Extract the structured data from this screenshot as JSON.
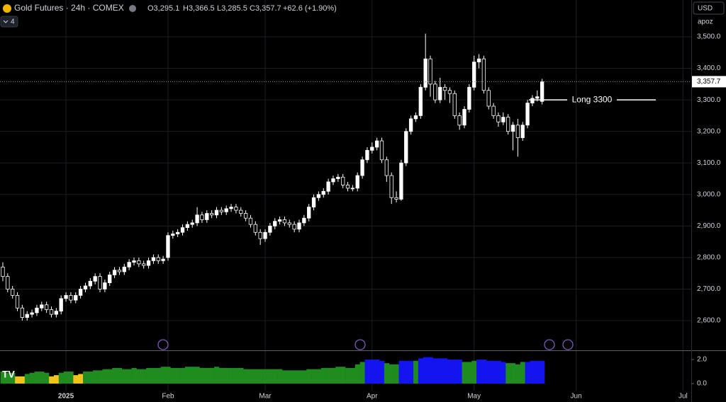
{
  "toolbar": {
    "symbol": "Gold Futures · 24h · COMEX",
    "ohlc": [
      "O3,295.1",
      "H3,366.5",
      "L3,285.5",
      "C3,357.7"
    ],
    "change": "+62.6 (+1.90%)",
    "indicator_count": "4",
    "currency": "USD",
    "scale_mode": "apoz"
  },
  "chart_data": {
    "type": "candlestick",
    "xlim": [
      -0.58,
      141.7
    ],
    "xticks": [
      {
        "value": 13,
        "label": "2025"
      },
      {
        "value": 34,
        "label": "Feb"
      },
      {
        "value": 54,
        "label": "Mar"
      },
      {
        "value": 76,
        "label": "Apr"
      },
      {
        "value": 97,
        "label": "May"
      },
      {
        "value": 118,
        "label": "Jun"
      },
      {
        "value": 140,
        "label": "Jul"
      }
    ],
    "ylim": [
      2505.8,
      3616.7
    ],
    "yticks": [
      {
        "value": 2600,
        "label": "2,600.0"
      },
      {
        "value": 2700,
        "label": "2,700.0"
      },
      {
        "value": 2800,
        "label": "2,800.0"
      },
      {
        "value": 2900,
        "label": "2,900.0"
      },
      {
        "value": 3000,
        "label": "3,000.0"
      },
      {
        "value": 3100,
        "label": "3,100.0"
      },
      {
        "value": 3200,
        "label": "3,200.0"
      },
      {
        "value": 3300,
        "label": "3,300.0"
      },
      {
        "value": 3400,
        "label": "3,400.0"
      },
      {
        "value": 3500,
        "label": "3,500.0"
      }
    ],
    "grid": true,
    "color": "#ffffff",
    "open": [
      2770,
      2740,
      2700,
      2680,
      2640,
      2610,
      2620,
      2625,
      2640,
      2650,
      2635,
      2620,
      2630,
      2670,
      2680,
      2665,
      2680,
      2700,
      2710,
      2725,
      2740,
      2700,
      2720,
      2745,
      2760,
      2755,
      2770,
      2785,
      2790,
      2780,
      2775,
      2790,
      2800,
      2790,
      2800,
      2870,
      2875,
      2880,
      2895,
      2905,
      2910,
      2935,
      2920,
      2940,
      2935,
      2950,
      2945,
      2955,
      2960,
      2950,
      2940,
      2925,
      2905,
      2880,
      2860,
      2880,
      2900,
      2915,
      2920,
      2910,
      2905,
      2890,
      2910,
      2925,
      2960,
      2990,
      3000,
      3010,
      3040,
      3050,
      3055,
      3030,
      3020,
      3020,
      3060,
      3110,
      3140,
      3150,
      3170,
      3110,
      3060,
      2990,
      2985,
      3100,
      3200,
      3240,
      3250,
      3340,
      3430,
      3350,
      3300,
      3340,
      3330,
      3320,
      3250,
      3220,
      3270,
      3340,
      3420,
      3430,
      3330,
      3280,
      3250,
      3230,
      3245,
      3200,
      3220,
      3180,
      3220,
      3290,
      3305,
      3295.1
    ],
    "high": [
      2785,
      2750,
      2710,
      2690,
      2650,
      2630,
      2635,
      2650,
      2660,
      2660,
      2645,
      2640,
      2680,
      2690,
      2690,
      2690,
      2710,
      2720,
      2735,
      2750,
      2750,
      2730,
      2755,
      2770,
      2770,
      2780,
      2795,
      2800,
      2800,
      2790,
      2800,
      2810,
      2810,
      2805,
      2880,
      2885,
      2890,
      2905,
      2915,
      2920,
      2960,
      2945,
      2950,
      2950,
      2960,
      2960,
      2965,
      2970,
      2970,
      2960,
      2950,
      2935,
      2915,
      2890,
      2890,
      2910,
      2925,
      2930,
      2930,
      2920,
      2915,
      2920,
      2935,
      2970,
      3000,
      3010,
      3020,
      3050,
      3060,
      3065,
      3065,
      3040,
      3030,
      3070,
      3120,
      3150,
      3165,
      3180,
      3180,
      3120,
      3070,
      3010,
      3110,
      3210,
      3250,
      3260,
      3350,
      3510,
      3440,
      3360,
      3370,
      3350,
      3340,
      3330,
      3260,
      3280,
      3350,
      3440,
      3445,
      3440,
      3340,
      3290,
      3260,
      3260,
      3255,
      3230,
      3240,
      3230,
      3300,
      3315,
      3330,
      3366.5
    ],
    "low": [
      2725,
      2690,
      2670,
      2630,
      2600,
      2600,
      2610,
      2615,
      2630,
      2625,
      2610,
      2610,
      2620,
      2660,
      2655,
      2655,
      2670,
      2690,
      2700,
      2715,
      2690,
      2690,
      2710,
      2735,
      2745,
      2745,
      2760,
      2775,
      2770,
      2765,
      2765,
      2780,
      2780,
      2780,
      2790,
      2860,
      2865,
      2870,
      2885,
      2895,
      2900,
      2910,
      2910,
      2925,
      2925,
      2935,
      2935,
      2945,
      2940,
      2930,
      2915,
      2895,
      2870,
      2840,
      2850,
      2870,
      2890,
      2905,
      2900,
      2895,
      2880,
      2880,
      2900,
      2915,
      2950,
      2980,
      2990,
      3000,
      3030,
      3040,
      3020,
      3010,
      3010,
      3010,
      3050,
      3100,
      3130,
      3140,
      3100,
      3040,
      2970,
      2975,
      2980,
      3090,
      3190,
      3230,
      3240,
      3330,
      3310,
      3290,
      3290,
      3300,
      3290,
      3240,
      3205,
      3210,
      3260,
      3330,
      3400,
      3320,
      3270,
      3240,
      3215,
      3220,
      3190,
      3140,
      3120,
      3170,
      3210,
      3280,
      3295,
      3285.5
    ],
    "close": [
      2740,
      2700,
      2680,
      2640,
      2610,
      2620,
      2625,
      2640,
      2650,
      2635,
      2620,
      2630,
      2670,
      2680,
      2665,
      2680,
      2700,
      2710,
      2725,
      2740,
      2700,
      2720,
      2745,
      2760,
      2755,
      2770,
      2785,
      2790,
      2780,
      2775,
      2790,
      2800,
      2790,
      2795,
      2870,
      2875,
      2880,
      2895,
      2905,
      2910,
      2935,
      2920,
      2940,
      2935,
      2950,
      2945,
      2955,
      2960,
      2950,
      2940,
      2925,
      2905,
      2880,
      2860,
      2880,
      2900,
      2915,
      2920,
      2910,
      2905,
      2890,
      2910,
      2925,
      2960,
      2990,
      3000,
      3010,
      3040,
      3050,
      3055,
      3030,
      3020,
      3020,
      3060,
      3110,
      3140,
      3150,
      3170,
      3110,
      3060,
      2990,
      2985,
      3100,
      3200,
      3240,
      3250,
      3340,
      3430,
      3350,
      3300,
      3340,
      3330,
      3320,
      3250,
      3220,
      3270,
      3340,
      3420,
      3430,
      3330,
      3280,
      3250,
      3230,
      3245,
      3200,
      3220,
      3180,
      3220,
      3290,
      3305,
      3310,
      3357.7
    ],
    "last_price": {
      "value": 3357.7,
      "label": "3,357.7"
    },
    "annotations": [
      {
        "text": "Long 3300",
        "value": 3300
      }
    ],
    "indicator": {
      "type": "bar",
      "ylim": [
        -0.59,
        2.65
      ],
      "yticks": [
        {
          "value": 0,
          "label": "0.0"
        },
        {
          "value": 2,
          "label": "2.0"
        }
      ],
      "values": [
        1.0,
        0.9,
        0.9,
        0.6,
        0.6,
        0.8,
        0.9,
        1.0,
        1.0,
        0.9,
        0.6,
        0.7,
        0.9,
        1.0,
        1.0,
        0.7,
        0.8,
        1.0,
        1.0,
        1.1,
        1.1,
        1.2,
        1.2,
        1.3,
        1.3,
        1.2,
        1.2,
        1.3,
        1.2,
        1.2,
        1.3,
        1.3,
        1.3,
        1.4,
        1.4,
        1.3,
        1.3,
        1.3,
        1.4,
        1.4,
        1.4,
        1.3,
        1.3,
        1.3,
        1.4,
        1.3,
        1.3,
        1.3,
        1.3,
        1.3,
        1.2,
        1.2,
        1.2,
        1.2,
        1.2,
        1.2,
        1.2,
        1.2,
        1.1,
        1.1,
        1.1,
        1.1,
        1.1,
        1.2,
        1.2,
        1.2,
        1.3,
        1.3,
        1.3,
        1.4,
        1.4,
        1.3,
        1.3,
        1.6,
        1.8,
        2.0,
        2.0,
        2.0,
        1.9,
        1.7,
        1.6,
        1.6,
        1.9,
        1.9,
        1.9,
        1.9,
        2.1,
        2.2,
        2.2,
        2.1,
        2.1,
        2.1,
        2.0,
        2.0,
        2.0,
        1.8,
        1.8,
        1.9,
        2.0,
        2.0,
        1.9,
        1.9,
        1.9,
        1.8,
        1.7,
        1.7,
        1.6,
        1.8,
        1.8,
        1.9,
        1.9,
        1.9
      ],
      "colors": [
        "#1e8c1e",
        "#1e8c1e",
        "#1e8c1e",
        "#f2c31c",
        "#f2c31c",
        "#1e8c1e",
        "#1e8c1e",
        "#1e8c1e",
        "#1e8c1e",
        "#1e8c1e",
        "#f2c31c",
        "#f2c31c",
        "#1e8c1e",
        "#1e8c1e",
        "#1e8c1e",
        "#f2c31c",
        "#f2c31c",
        "#1e8c1e",
        "#1e8c1e",
        "#1e8c1e",
        "#1e8c1e",
        "#1e8c1e",
        "#1e8c1e",
        "#1e8c1e",
        "#1e8c1e",
        "#1e8c1e",
        "#1e8c1e",
        "#1e8c1e",
        "#1e8c1e",
        "#1e8c1e",
        "#1e8c1e",
        "#1e8c1e",
        "#1e8c1e",
        "#1e8c1e",
        "#1e8c1e",
        "#1e8c1e",
        "#1e8c1e",
        "#1e8c1e",
        "#1e8c1e",
        "#1e8c1e",
        "#1e8c1e",
        "#1e8c1e",
        "#1e8c1e",
        "#1e8c1e",
        "#1e8c1e",
        "#1e8c1e",
        "#1e8c1e",
        "#1e8c1e",
        "#1e8c1e",
        "#1e8c1e",
        "#1e8c1e",
        "#1e8c1e",
        "#1e8c1e",
        "#1e8c1e",
        "#1e8c1e",
        "#1e8c1e",
        "#1e8c1e",
        "#1e8c1e",
        "#1e8c1e",
        "#1e8c1e",
        "#1e8c1e",
        "#1e8c1e",
        "#1e8c1e",
        "#1e8c1e",
        "#1e8c1e",
        "#1e8c1e",
        "#1e8c1e",
        "#1e8c1e",
        "#1e8c1e",
        "#1e8c1e",
        "#1e8c1e",
        "#1e8c1e",
        "#1e8c1e",
        "#1e8c1e",
        "#1e8c1e",
        "#1414f0",
        "#1414f0",
        "#1414f0",
        "#1414f0",
        "#1e8c1e",
        "#1e8c1e",
        "#1e8c1e",
        "#1414f0",
        "#1414f0",
        "#1414f0",
        "#1e8c1e",
        "#1414f0",
        "#1414f0",
        "#1414f0",
        "#1414f0",
        "#1414f0",
        "#1414f0",
        "#1414f0",
        "#1414f0",
        "#1414f0",
        "#1e8c1e",
        "#1e8c1e",
        "#1e8c1e",
        "#1414f0",
        "#1414f0",
        "#1414f0",
        "#1414f0",
        "#1414f0",
        "#1414f0",
        "#1e8c1e",
        "#1e8c1e",
        "#1e8c1e",
        "#1e8c1e",
        "#1414f0",
        "#1414f0",
        "#1414f0",
        "#1414f0"
      ]
    }
  }
}
